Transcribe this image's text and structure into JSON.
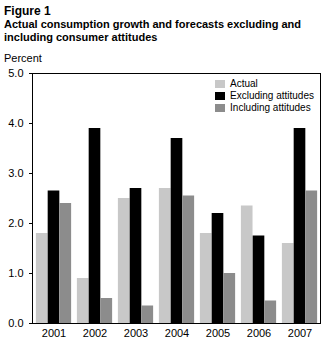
{
  "chart_data": {
    "type": "bar",
    "title": "Figure 1",
    "subtitle": "Actual consumption growth and forecasts excluding and including consumer attitudes",
    "y_label": "Percent",
    "categories": [
      "2001",
      "2002",
      "2003",
      "2004",
      "2005",
      "2006",
      "2007"
    ],
    "series": [
      {
        "name": "Actual",
        "color": "#c8c8c8",
        "values": [
          1.8,
          0.9,
          2.5,
          2.7,
          1.8,
          2.35,
          1.6
        ]
      },
      {
        "name": "Excluding attitudes",
        "color": "#000000",
        "values": [
          2.65,
          3.9,
          2.7,
          3.7,
          2.2,
          1.75,
          3.9
        ]
      },
      {
        "name": "Including attitudes",
        "color": "#8c8c8c",
        "values": [
          2.4,
          0.5,
          0.35,
          2.55,
          1.0,
          0.45,
          2.65
        ]
      }
    ],
    "ylim": [
      0,
      5
    ],
    "yticks": [
      0,
      1,
      2,
      3,
      4,
      5
    ],
    "legend": "top-right",
    "grid": false
  }
}
